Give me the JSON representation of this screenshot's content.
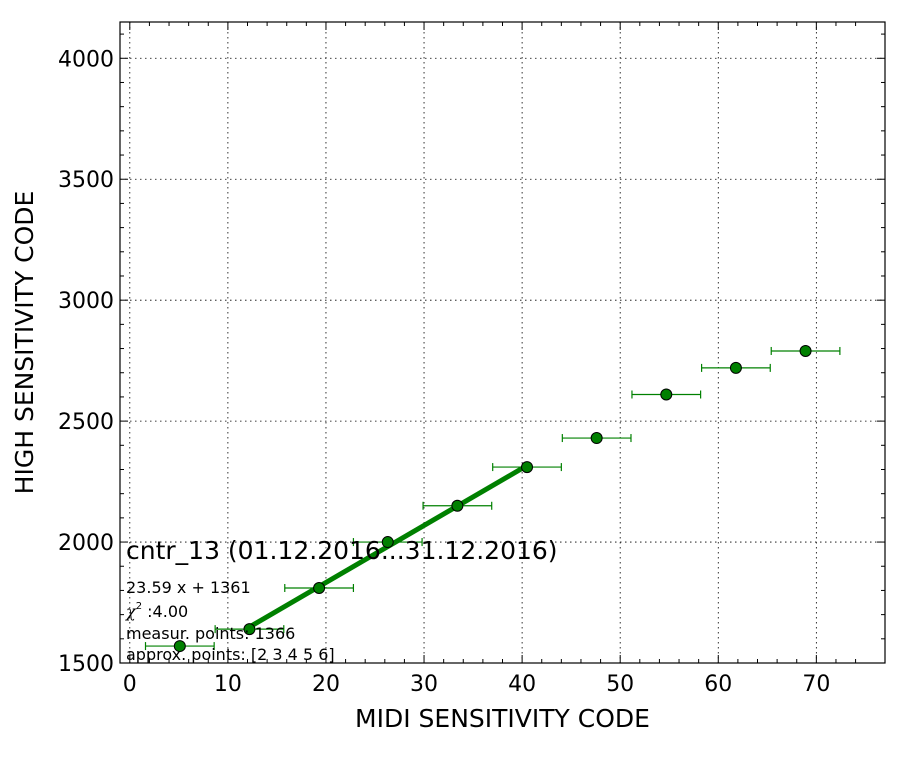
{
  "chart_data": {
    "type": "scatter",
    "xlabel": "MIDI SENSITIVITY CODE",
    "ylabel": "HIGH SENSITIVITY CODE",
    "xlim": [
      -1,
      77
    ],
    "ylim": [
      1500,
      4150
    ],
    "xticks": [
      0,
      10,
      20,
      30,
      40,
      50,
      60,
      70
    ],
    "yticks": [
      1500,
      2000,
      2500,
      3000,
      3500,
      4000
    ],
    "grid": true,
    "color": "#008000",
    "points": [
      {
        "x": 5.1,
        "y": 1570,
        "xerr": 3.5
      },
      {
        "x": 12.2,
        "y": 1640,
        "xerr": 3.5
      },
      {
        "x": 19.3,
        "y": 1810,
        "xerr": 3.5
      },
      {
        "x": 26.3,
        "y": 2000,
        "xerr": 3.5
      },
      {
        "x": 33.4,
        "y": 2150,
        "xerr": 3.5
      },
      {
        "x": 40.5,
        "y": 2310,
        "xerr": 3.5
      },
      {
        "x": 47.6,
        "y": 2430,
        "xerr": 3.5
      },
      {
        "x": 54.7,
        "y": 2610,
        "xerr": 3.5
      },
      {
        "x": 61.8,
        "y": 2720,
        "xerr": 3.5
      },
      {
        "x": 68.9,
        "y": 2790,
        "xerr": 3.5
      }
    ],
    "fit": {
      "slope": 23.59,
      "intercept": 1361,
      "x_range": [
        12.2,
        40.5
      ]
    },
    "annotation": {
      "title": "cntr_13 (01.12.2016...31.12.2016)",
      "equation": "23.59 x + 1361",
      "chi_symbol": "χ",
      "chi_exp": "2",
      "chi_value": " :4.00",
      "measur": "measur. points: 1366",
      "approx": "approx. points: [2 3 4 5 6]"
    }
  }
}
